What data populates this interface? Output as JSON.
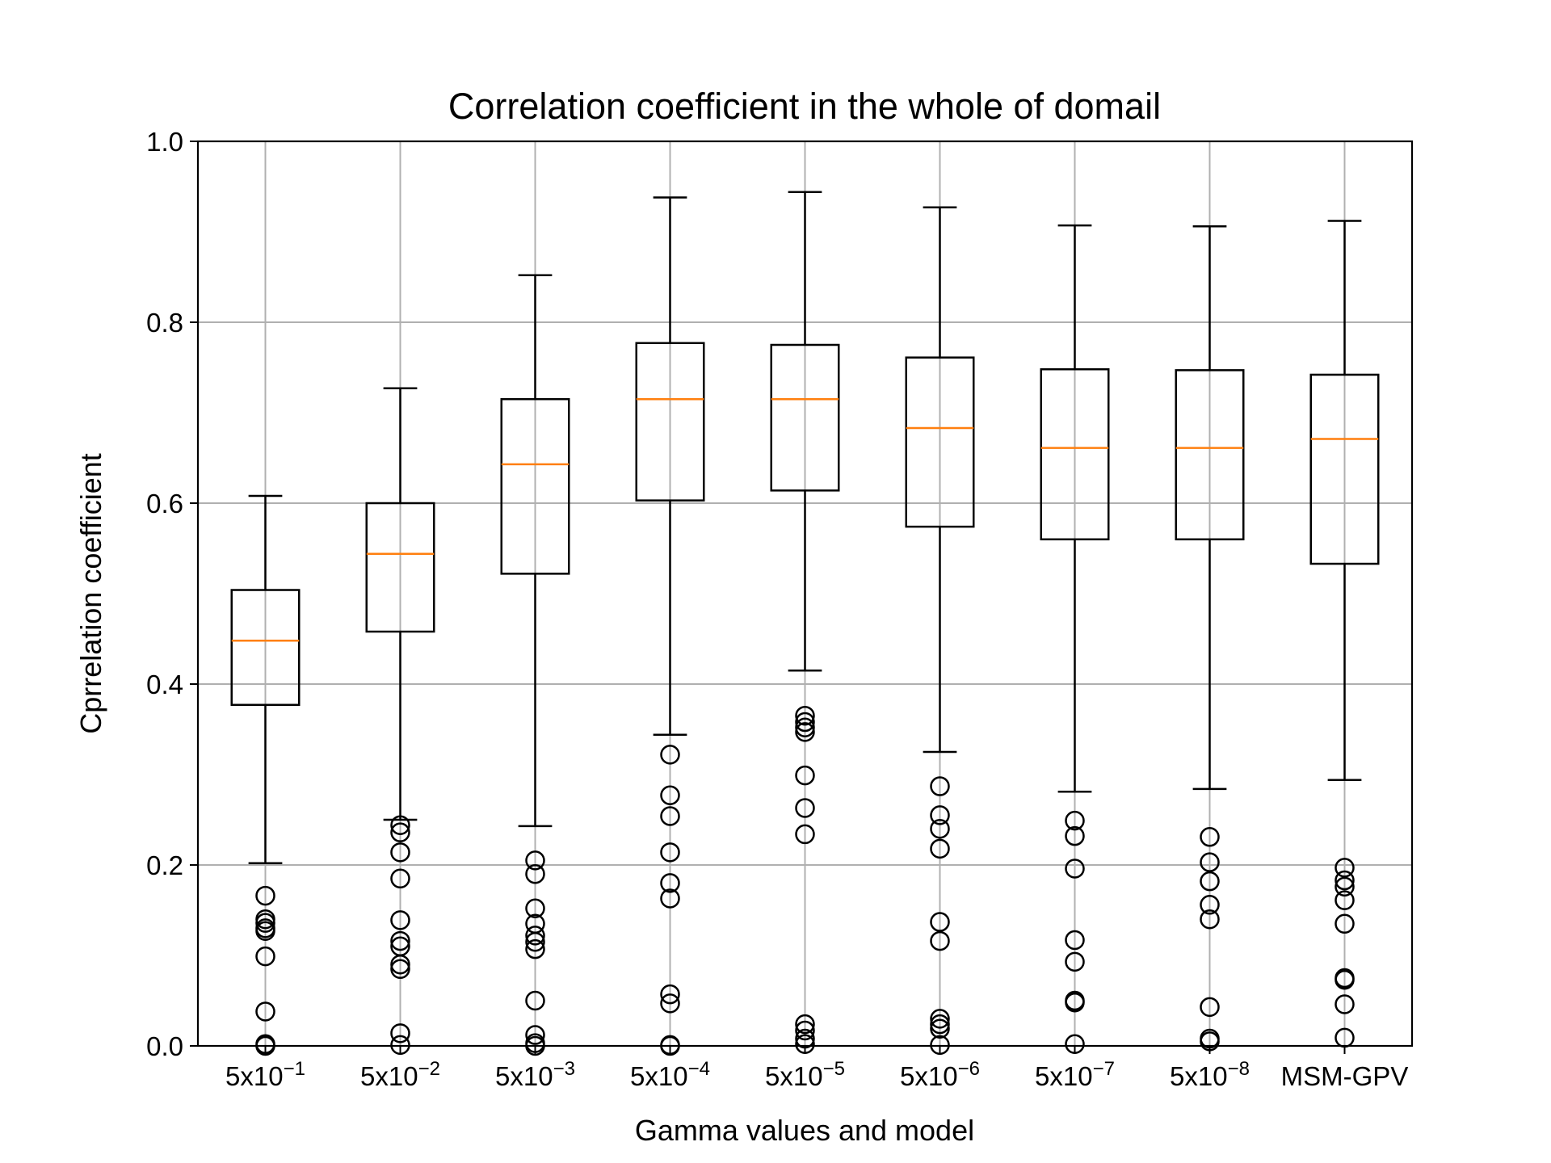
{
  "chart_data": {
    "type": "box",
    "title": "Correlation coefficient in the whole of domail",
    "xlabel": "Gamma values and model",
    "ylabel": "Cprrelation coefficient",
    "ylim": [
      0.0,
      1.0
    ],
    "yticks": [
      "0.0",
      "0.2",
      "0.4",
      "0.6",
      "0.8",
      "1.0"
    ],
    "grid": true,
    "colors": {
      "box": "#000000",
      "median": "#ff7f0e",
      "grid": "#b0b0b0"
    },
    "categories": [
      {
        "base": "5x10",
        "exp": "−1"
      },
      {
        "base": "5x10",
        "exp": "−2"
      },
      {
        "base": "5x10",
        "exp": "−3"
      },
      {
        "base": "5x10",
        "exp": "−4"
      },
      {
        "base": "5x10",
        "exp": "−5"
      },
      {
        "base": "5x10",
        "exp": "−6"
      },
      {
        "base": "5x10",
        "exp": "−7"
      },
      {
        "base": "5x10",
        "exp": "−8"
      },
      {
        "base": "MSM-GPV",
        "exp": ""
      }
    ],
    "boxes": [
      {
        "whislo": 0.202,
        "q1": 0.377,
        "med": 0.448,
        "q3": 0.504,
        "whishi": 0.608,
        "fliers": [
          0.166,
          0.14,
          0.136,
          0.13,
          0.127,
          0.099,
          0.038,
          0.002,
          0.0
        ]
      },
      {
        "whislo": 0.25,
        "q1": 0.458,
        "med": 0.544,
        "q3": 0.6,
        "whishi": 0.727,
        "fliers": [
          0.244,
          0.236,
          0.214,
          0.185,
          0.139,
          0.116,
          0.11,
          0.09,
          0.085,
          0.014,
          0.001
        ]
      },
      {
        "whislo": 0.243,
        "q1": 0.522,
        "med": 0.643,
        "q3": 0.715,
        "whishi": 0.852,
        "fliers": [
          0.205,
          0.19,
          0.152,
          0.135,
          0.122,
          0.115,
          0.107,
          0.05,
          0.012,
          0.003,
          0.0
        ]
      },
      {
        "whislo": 0.344,
        "q1": 0.603,
        "med": 0.715,
        "q3": 0.777,
        "whishi": 0.938,
        "fliers": [
          0.322,
          0.277,
          0.254,
          0.214,
          0.18,
          0.163,
          0.057,
          0.047,
          0.001,
          0.0
        ]
      },
      {
        "whislo": 0.415,
        "q1": 0.614,
        "med": 0.715,
        "q3": 0.775,
        "whishi": 0.944,
        "fliers": [
          0.365,
          0.358,
          0.352,
          0.347,
          0.299,
          0.263,
          0.234,
          0.024,
          0.017,
          0.008,
          0.002
        ]
      },
      {
        "whislo": 0.325,
        "q1": 0.574,
        "med": 0.683,
        "q3": 0.761,
        "whishi": 0.927,
        "fliers": [
          0.287,
          0.255,
          0.24,
          0.218,
          0.137,
          0.116,
          0.03,
          0.024,
          0.019,
          0.001
        ]
      },
      {
        "whislo": 0.281,
        "q1": 0.56,
        "med": 0.661,
        "q3": 0.748,
        "whishi": 0.907,
        "fliers": [
          0.249,
          0.232,
          0.196,
          0.117,
          0.093,
          0.05,
          0.048,
          0.002
        ]
      },
      {
        "whislo": 0.284,
        "q1": 0.56,
        "med": 0.661,
        "q3": 0.747,
        "whishi": 0.906,
        "fliers": [
          0.231,
          0.203,
          0.182,
          0.156,
          0.14,
          0.043,
          0.008,
          0.005
        ]
      },
      {
        "whislo": 0.294,
        "q1": 0.533,
        "med": 0.671,
        "q3": 0.742,
        "whishi": 0.912,
        "fliers": [
          0.197,
          0.183,
          0.176,
          0.161,
          0.135,
          0.075,
          0.073,
          0.046,
          0.009
        ]
      }
    ]
  }
}
